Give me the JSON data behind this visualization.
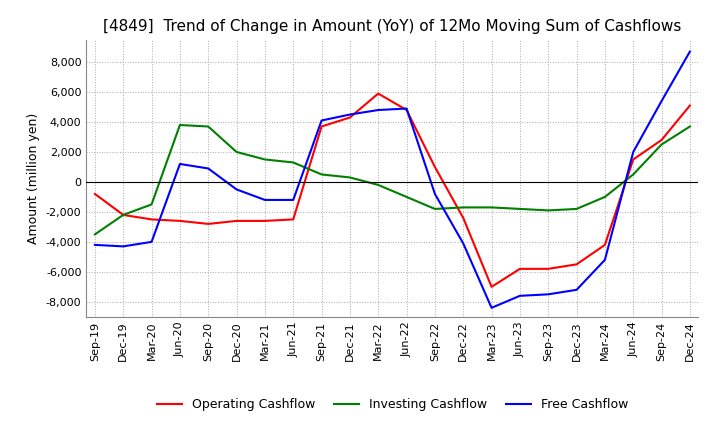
{
  "title": "[4849]  Trend of Change in Amount (YoY) of 12Mo Moving Sum of Cashflows",
  "ylabel": "Amount (million yen)",
  "ylim": [
    -9000,
    9500
  ],
  "yticks": [
    -8000,
    -6000,
    -4000,
    -2000,
    0,
    2000,
    4000,
    6000,
    8000
  ],
  "x_labels": [
    "Sep-19",
    "Dec-19",
    "Mar-20",
    "Jun-20",
    "Sep-20",
    "Dec-20",
    "Mar-21",
    "Jun-21",
    "Sep-21",
    "Dec-21",
    "Mar-22",
    "Jun-22",
    "Sep-22",
    "Dec-22",
    "Mar-23",
    "Jun-23",
    "Sep-23",
    "Dec-23",
    "Mar-24",
    "Jun-24",
    "Sep-24",
    "Dec-24"
  ],
  "operating": [
    -800,
    -2200,
    -2500,
    -2600,
    -2800,
    -2600,
    -2600,
    -2500,
    3700,
    4300,
    5900,
    4800,
    1000,
    -2400,
    -7000,
    -5800,
    -5800,
    -5500,
    -4200,
    1500,
    2800,
    5100
  ],
  "investing": [
    -3500,
    -2200,
    -1500,
    3800,
    3700,
    2000,
    1500,
    1300,
    500,
    300,
    -200,
    -1000,
    -1800,
    -1700,
    -1700,
    -1800,
    -1900,
    -1800,
    -1000,
    500,
    2500,
    3700
  ],
  "free": [
    -4200,
    -4300,
    -4000,
    1200,
    900,
    -500,
    -1200,
    -1200,
    4100,
    4500,
    4800,
    4900,
    -800,
    -4100,
    -8400,
    -7600,
    -7500,
    -7200,
    -5200,
    2000,
    5400,
    8700
  ],
  "line_colors": {
    "operating": "#ff0000",
    "investing": "#008000",
    "free": "#0000ff"
  },
  "legend_labels": [
    "Operating Cashflow",
    "Investing Cashflow",
    "Free Cashflow"
  ],
  "background_color": "#ffffff",
  "grid_color": "#aaaaaa",
  "title_fontsize": 11,
  "label_fontsize": 9,
  "tick_fontsize": 8
}
